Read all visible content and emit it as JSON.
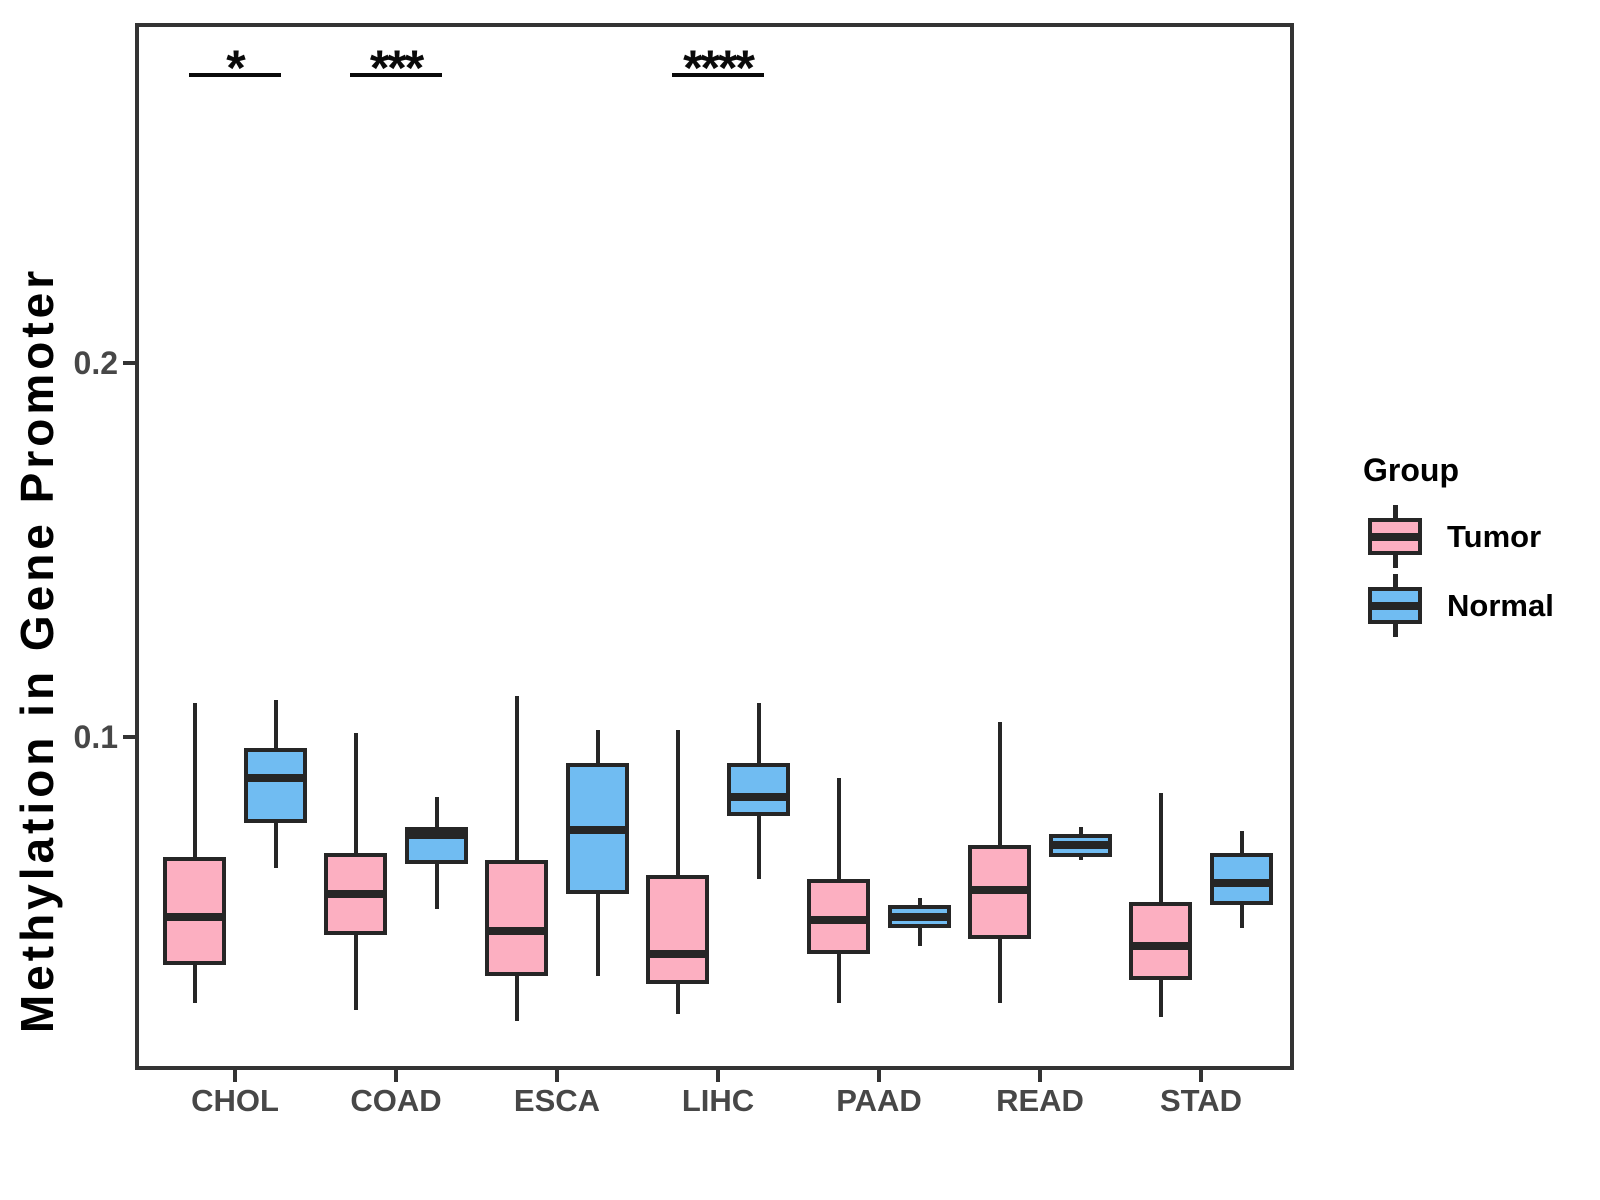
{
  "chart_data": {
    "type": "boxplot",
    "title": "",
    "xlabel": "",
    "ylabel": "Methylation in Gene Promoter",
    "categories": [
      "CHOL",
      "COAD",
      "ESCA",
      "LIHC",
      "PAAD",
      "READ",
      "STAD"
    ],
    "y_ticks": [
      {
        "value": 0.2,
        "label": "0.2"
      },
      {
        "value": 0.1,
        "label": "0.1"
      }
    ],
    "ylim": [
      0.011,
      0.291
    ],
    "grid": "off",
    "legend_position": "right",
    "groups": [
      "Tumor",
      "Normal"
    ],
    "series": [
      {
        "name": "Tumor",
        "fill": "#FCAFC1",
        "boxes": [
          {
            "category": "CHOL",
            "whisker_low": 0.029,
            "q1": 0.039,
            "median": 0.052,
            "q3": 0.068,
            "whisker_high": 0.109
          },
          {
            "category": "COAD",
            "whisker_low": 0.027,
            "q1": 0.047,
            "median": 0.058,
            "q3": 0.069,
            "whisker_high": 0.101
          },
          {
            "category": "ESCA",
            "whisker_low": 0.024,
            "q1": 0.036,
            "median": 0.048,
            "q3": 0.067,
            "whisker_high": 0.111
          },
          {
            "category": "LIHC",
            "whisker_low": 0.026,
            "q1": 0.034,
            "median": 0.042,
            "q3": 0.063,
            "whisker_high": 0.102
          },
          {
            "category": "PAAD",
            "whisker_low": 0.029,
            "q1": 0.042,
            "median": 0.051,
            "q3": 0.062,
            "whisker_high": 0.089
          },
          {
            "category": "READ",
            "whisker_low": 0.029,
            "q1": 0.046,
            "median": 0.059,
            "q3": 0.071,
            "whisker_high": 0.104
          },
          {
            "category": "STAD",
            "whisker_low": 0.025,
            "q1": 0.035,
            "median": 0.044,
            "q3": 0.056,
            "whisker_high": 0.085
          }
        ]
      },
      {
        "name": "Normal",
        "fill": "#70BCF2",
        "boxes": [
          {
            "category": "CHOL",
            "whisker_low": 0.065,
            "q1": 0.077,
            "median": 0.089,
            "q3": 0.097,
            "whisker_high": 0.11
          },
          {
            "category": "COAD",
            "whisker_low": 0.054,
            "q1": 0.066,
            "median": 0.074,
            "q3": 0.076,
            "whisker_high": 0.084
          },
          {
            "category": "ESCA",
            "whisker_low": 0.036,
            "q1": 0.058,
            "median": 0.075,
            "q3": 0.093,
            "whisker_high": 0.102
          },
          {
            "category": "LIHC",
            "whisker_low": 0.062,
            "q1": 0.079,
            "median": 0.084,
            "q3": 0.093,
            "whisker_high": 0.109
          },
          {
            "category": "PAAD",
            "whisker_low": 0.044,
            "q1": 0.049,
            "median": 0.052,
            "q3": 0.055,
            "whisker_high": 0.057
          },
          {
            "category": "READ",
            "whisker_low": 0.067,
            "q1": 0.068,
            "median": 0.071,
            "q3": 0.074,
            "whisker_high": 0.076
          },
          {
            "category": "STAD",
            "whisker_low": 0.049,
            "q1": 0.055,
            "median": 0.061,
            "q3": 0.069,
            "whisker_high": 0.075
          }
        ]
      }
    ],
    "significance": [
      {
        "category": "CHOL",
        "label": "*"
      },
      {
        "category": "COAD",
        "label": "***"
      },
      {
        "category": "LIHC",
        "label": "****"
      }
    ]
  },
  "legend": {
    "title": "Group",
    "items": [
      {
        "label": "Tumor",
        "color": "#FCAFC1"
      },
      {
        "label": "Normal",
        "color": "#70BCF2"
      }
    ]
  },
  "colors": {
    "tumor_fill": "#FCAFC1",
    "normal_fill": "#70BCF2",
    "stroke": "#262626",
    "panel_border": "#333333",
    "axis_text": "#474747",
    "significance": "#0A0A0A"
  }
}
